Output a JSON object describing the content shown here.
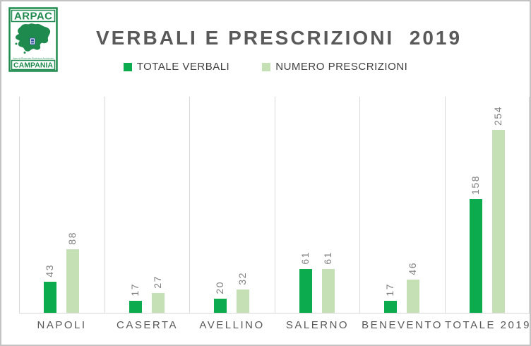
{
  "logo": {
    "brand": "ARPAC",
    "region": "CAMPANIA",
    "agency_line": "Agenzia Regionale Protezione Ambientale"
  },
  "colors": {
    "dark_green": "#0cab4e",
    "light_green": "#c5e0b4",
    "logo_green": "#1f8a4e",
    "title_gray": "#595959",
    "value_label_gray": "#7f7f7f",
    "gridline_gray": "#d9d9d9"
  },
  "chart_data": {
    "type": "bar",
    "title": "VERBALI E PRESCRIZIONI  2019",
    "categories": [
      "NAPOLI",
      "CASERTA",
      "AVELLINO",
      "SALERNO",
      "BENEVENTO",
      "TOTALE 2019"
    ],
    "series": [
      {
        "name": "TOTALE VERBALI",
        "color": "#0cab4e",
        "values": [
          43,
          17,
          20,
          61,
          17,
          158
        ]
      },
      {
        "name": "NUMERO PRESCRIZIONI",
        "color": "#c5e0b4",
        "values": [
          88,
          27,
          32,
          61,
          46,
          254
        ]
      }
    ],
    "xlabel": "",
    "ylabel": "",
    "ylim": [
      0,
      300
    ],
    "grid": "vertical-category-separators",
    "legend_position": "top",
    "data_labels": "rotated-90-above-bars"
  }
}
